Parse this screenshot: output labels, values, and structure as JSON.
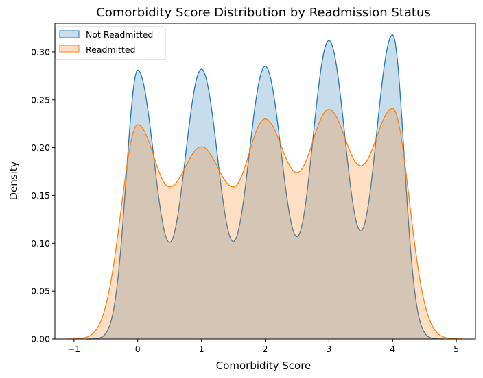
{
  "chart_data": {
    "type": "area",
    "title": "Comorbidity Score Distribution by Readmission Status",
    "xlabel": "Comorbidity Score",
    "ylabel": "Density",
    "xlim": [
      -1.3,
      5.3
    ],
    "ylim": [
      0,
      0.33
    ],
    "x_ticks": [
      -1,
      0,
      1,
      2,
      3,
      4,
      5
    ],
    "y_ticks": [
      0.0,
      0.05,
      0.1,
      0.15,
      0.2,
      0.25,
      0.3
    ],
    "x_tick_labels": [
      "−1",
      "0",
      "1",
      "2",
      "3",
      "4",
      "5"
    ],
    "y_tick_labels": [
      "0.00",
      "0.05",
      "0.10",
      "0.15",
      "0.20",
      "0.25",
      "0.30"
    ],
    "grid": false,
    "legend_position": "top-left",
    "series": [
      {
        "name": "Not Readmitted",
        "color": "#1f77b4",
        "x_range": [
          -0.8,
          4.8
        ],
        "peaks": [
          {
            "x": 0,
            "y": 0.281
          },
          {
            "x": 1,
            "y": 0.282
          },
          {
            "x": 2,
            "y": 0.285
          },
          {
            "x": 3,
            "y": 0.312
          },
          {
            "x": 4,
            "y": 0.318
          }
        ],
        "troughs": [
          {
            "x": 0.5,
            "y": 0.101
          },
          {
            "x": 1.5,
            "y": 0.102
          },
          {
            "x": 2.5,
            "y": 0.107
          },
          {
            "x": 3.5,
            "y": 0.113
          }
        ],
        "bandwidth": 0.18
      },
      {
        "name": "Readmitted",
        "color": "#ff7f0e",
        "x_range": [
          -1.1,
          5.1
        ],
        "peaks": [
          {
            "x": 0,
            "y": 0.224
          },
          {
            "x": 1,
            "y": 0.201
          },
          {
            "x": 2,
            "y": 0.23
          },
          {
            "x": 3,
            "y": 0.24
          },
          {
            "x": 4,
            "y": 0.241
          }
        ],
        "troughs": [
          {
            "x": 0.5,
            "y": 0.159
          },
          {
            "x": 1.5,
            "y": 0.159
          },
          {
            "x": 2.5,
            "y": 0.174
          },
          {
            "x": 3.5,
            "y": 0.181
          }
        ],
        "bandwidth": 0.26
      }
    ]
  }
}
